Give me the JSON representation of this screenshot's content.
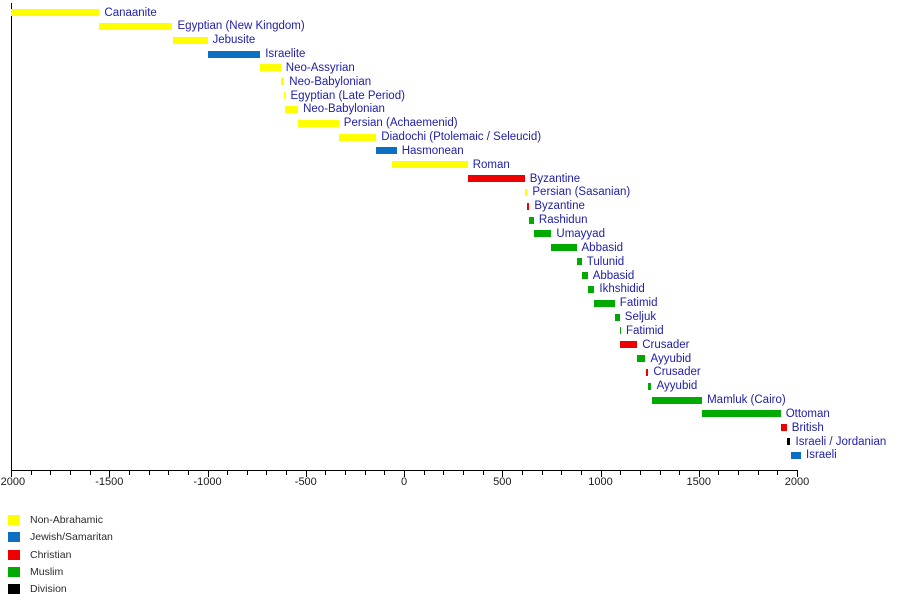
{
  "chart_data": {
    "type": "bar",
    "variant": "horizontal-timeline-gantt",
    "subject": "Historical periods of rule (Jerusalem region)",
    "grid": false,
    "legend_position": "bottom-left",
    "axis": {
      "min": -2000,
      "max": 2000,
      "labeled_tick_step": 500,
      "minor_tick_step": 100,
      "tick_labels": [
        "-2000",
        "-1500",
        "-1000",
        "-500",
        "0",
        "500",
        "1000",
        "1500",
        "2000"
      ]
    },
    "legend": [
      {
        "key": "non_abrahamic",
        "label": "Non-Abrahamic",
        "color": "#ffff00"
      },
      {
        "key": "jewish_samaritan",
        "label": "Jewish/Samaritan",
        "color": "#0d6fc2"
      },
      {
        "key": "christian",
        "label": "Christian",
        "color": "#ee0000"
      },
      {
        "key": "muslim",
        "label": "Muslim",
        "color": "#00aa00"
      },
      {
        "key": "division",
        "label": "Division",
        "color": "#000000"
      }
    ],
    "periods": [
      {
        "label": "Canaanite",
        "start": -2000,
        "end": -1550,
        "category": "non_abrahamic"
      },
      {
        "label": "Egyptian (New Kingdom)",
        "start": -1550,
        "end": -1178,
        "category": "non_abrahamic"
      },
      {
        "label": "Jebusite",
        "start": -1178,
        "end": -1000,
        "category": "non_abrahamic"
      },
      {
        "label": "Israelite",
        "start": -1000,
        "end": -732,
        "category": "jewish_samaritan"
      },
      {
        "label": "Neo-Assyrian",
        "start": -732,
        "end": -627,
        "category": "non_abrahamic"
      },
      {
        "label": "Neo-Babylonian",
        "start": -627,
        "end": -609,
        "category": "non_abrahamic"
      },
      {
        "label": "Egyptian (Late Period)",
        "start": -609,
        "end": -605,
        "category": "non_abrahamic"
      },
      {
        "label": "Neo-Babylonian",
        "start": -605,
        "end": -539,
        "category": "non_abrahamic"
      },
      {
        "label": "Persian (Achaemenid)",
        "start": -539,
        "end": -332,
        "category": "non_abrahamic"
      },
      {
        "label": "Diadochi (Ptolemaic / Seleucid)",
        "start": -332,
        "end": -141,
        "category": "non_abrahamic"
      },
      {
        "label": "Hasmonean",
        "start": -141,
        "end": -37,
        "category": "jewish_samaritan"
      },
      {
        "label": "Roman",
        "start": -63,
        "end": 324,
        "category": "non_abrahamic"
      },
      {
        "label": "Byzantine",
        "start": 324,
        "end": 614,
        "category": "christian"
      },
      {
        "label": "Persian (Sasanian)",
        "start": 614,
        "end": 628,
        "category": "non_abrahamic"
      },
      {
        "label": "Byzantine",
        "start": 628,
        "end": 638,
        "category": "christian"
      },
      {
        "label": "Rashidun",
        "start": 638,
        "end": 661,
        "category": "muslim"
      },
      {
        "label": "Umayyad",
        "start": 661,
        "end": 750,
        "category": "muslim"
      },
      {
        "label": "Abbasid",
        "start": 750,
        "end": 878,
        "category": "muslim"
      },
      {
        "label": "Tulunid",
        "start": 878,
        "end": 905,
        "category": "muslim"
      },
      {
        "label": "Abbasid",
        "start": 905,
        "end": 935,
        "category": "muslim"
      },
      {
        "label": "Ikhshidid",
        "start": 935,
        "end": 969,
        "category": "muslim"
      },
      {
        "label": "Fatimid",
        "start": 969,
        "end": 1073,
        "category": "muslim"
      },
      {
        "label": "Seljuk",
        "start": 1073,
        "end": 1098,
        "category": "muslim"
      },
      {
        "label": "Fatimid",
        "start": 1098,
        "end": 1099,
        "category": "muslim"
      },
      {
        "label": "Crusader",
        "start": 1099,
        "end": 1187,
        "category": "christian"
      },
      {
        "label": "Ayyubid",
        "start": 1187,
        "end": 1229,
        "category": "muslim"
      },
      {
        "label": "Crusader",
        "start": 1229,
        "end": 1244,
        "category": "christian"
      },
      {
        "label": "Ayyubid",
        "start": 1244,
        "end": 1260,
        "category": "muslim"
      },
      {
        "label": "Mamluk (Cairo)",
        "start": 1260,
        "end": 1517,
        "category": "muslim"
      },
      {
        "label": "Ottoman",
        "start": 1517,
        "end": 1917,
        "category": "muslim"
      },
      {
        "label": "British",
        "start": 1917,
        "end": 1948,
        "category": "christian"
      },
      {
        "label": "Israeli / Jordanian",
        "start": 1948,
        "end": 1967,
        "category": "division"
      },
      {
        "label": "Israeli",
        "start": 1967,
        "end": null,
        "open_ended": true,
        "category": "jewish_samaritan"
      }
    ],
    "style": {
      "label_color": "#2020ab",
      "axis_color": "#000000",
      "background": "#ffffff"
    }
  }
}
